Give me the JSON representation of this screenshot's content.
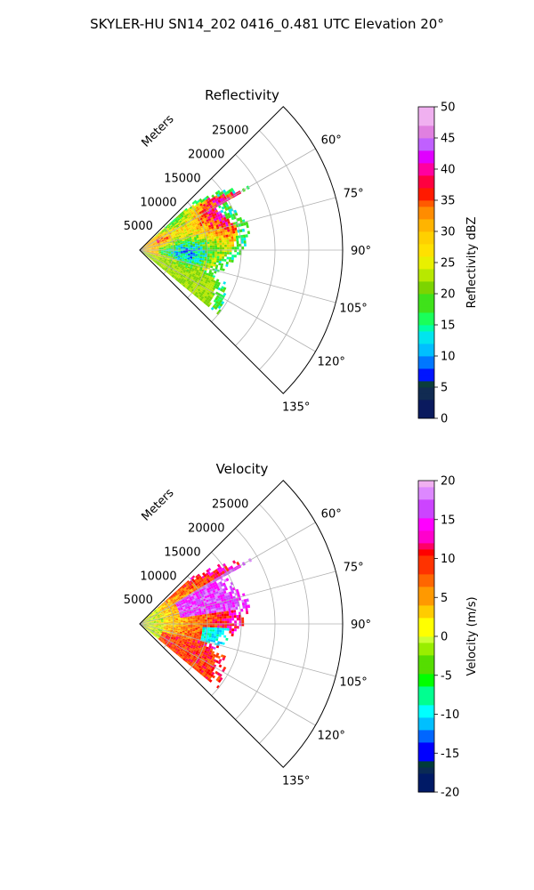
{
  "figure": {
    "suptitle": "SKYLER-HU  SN14_202  0416_0.481 UTC Elevation 20°"
  },
  "chart_data": [
    {
      "type": "heatmap",
      "projection": "polar-sector",
      "title": "Reflectivity",
      "radial_axis_label": "Meters",
      "radial_ticks": [
        "5000",
        "10000",
        "15000",
        "20000",
        "25000"
      ],
      "radial_tick_values": [
        5000,
        10000,
        15000,
        20000,
        25000
      ],
      "angular_ticks": [
        "60°",
        "75°",
        "90°",
        "105°",
        "120°",
        "135°"
      ],
      "angular_tick_values": [
        60,
        75,
        90,
        105,
        120,
        135
      ],
      "angle_range_deg": [
        45,
        135
      ],
      "rmax_m": 30000,
      "grid": true,
      "colorbar": {
        "label": "Reflectivity dBZ",
        "ticks": [
          "0",
          "5",
          "10",
          "15",
          "20",
          "25",
          "30",
          "35",
          "40",
          "45",
          "50"
        ],
        "range": [
          0,
          50
        ]
      },
      "data_summary": {
        "echo_extent_m": [
          0,
          16500
        ],
        "core_values_dbz": [
          30,
          40
        ],
        "edge_values_dbz": [
          12,
          20
        ],
        "sample_cells": [
          {
            "az": 65,
            "r": 8000,
            "dbz": 38
          },
          {
            "az": 70,
            "r": 10000,
            "dbz": 40
          },
          {
            "az": 80,
            "r": 6000,
            "dbz": 36
          },
          {
            "az": 85,
            "r": 9000,
            "dbz": 30
          },
          {
            "az": 95,
            "r": 3000,
            "dbz": 38
          },
          {
            "az": 100,
            "r": 6000,
            "dbz": 32
          },
          {
            "az": 110,
            "r": 9000,
            "dbz": 20
          },
          {
            "az": 120,
            "r": 12000,
            "dbz": 16
          }
        ]
      }
    },
    {
      "type": "heatmap",
      "projection": "polar-sector",
      "title": "Velocity",
      "radial_axis_label": "Meters",
      "radial_ticks": [
        "5000",
        "10000",
        "15000",
        "20000",
        "25000"
      ],
      "radial_tick_values": [
        5000,
        10000,
        15000,
        20000,
        25000
      ],
      "angular_ticks": [
        "60°",
        "75°",
        "90°",
        "105°",
        "120°",
        "135°"
      ],
      "angular_tick_values": [
        60,
        75,
        90,
        105,
        120,
        135
      ],
      "angle_range_deg": [
        45,
        135
      ],
      "rmax_m": 30000,
      "grid": true,
      "colorbar": {
        "label": "Velocity (m/s)",
        "ticks": [
          "-20",
          "-15",
          "-10",
          "-5",
          "0",
          "5",
          "10",
          "15",
          "20"
        ],
        "range": [
          -20,
          20
        ]
      },
      "data_summary": {
        "echo_extent_m": [
          0,
          16500
        ],
        "near_range_values_ms": [
          -5,
          5
        ],
        "far_range_values_ms": [
          8,
          16
        ],
        "sample_cells": [
          {
            "az": 65,
            "r": 9000,
            "v": 15
          },
          {
            "az": 70,
            "r": 12000,
            "v": 16
          },
          {
            "az": 80,
            "r": 5000,
            "v": 10
          },
          {
            "az": 88,
            "r": 10000,
            "v": 14
          },
          {
            "az": 95,
            "r": 3000,
            "v": 2
          },
          {
            "az": 100,
            "r": 12000,
            "v": -12
          },
          {
            "az": 110,
            "r": 7000,
            "v": 5
          },
          {
            "az": 120,
            "r": 11000,
            "v": 12
          }
        ]
      }
    }
  ]
}
